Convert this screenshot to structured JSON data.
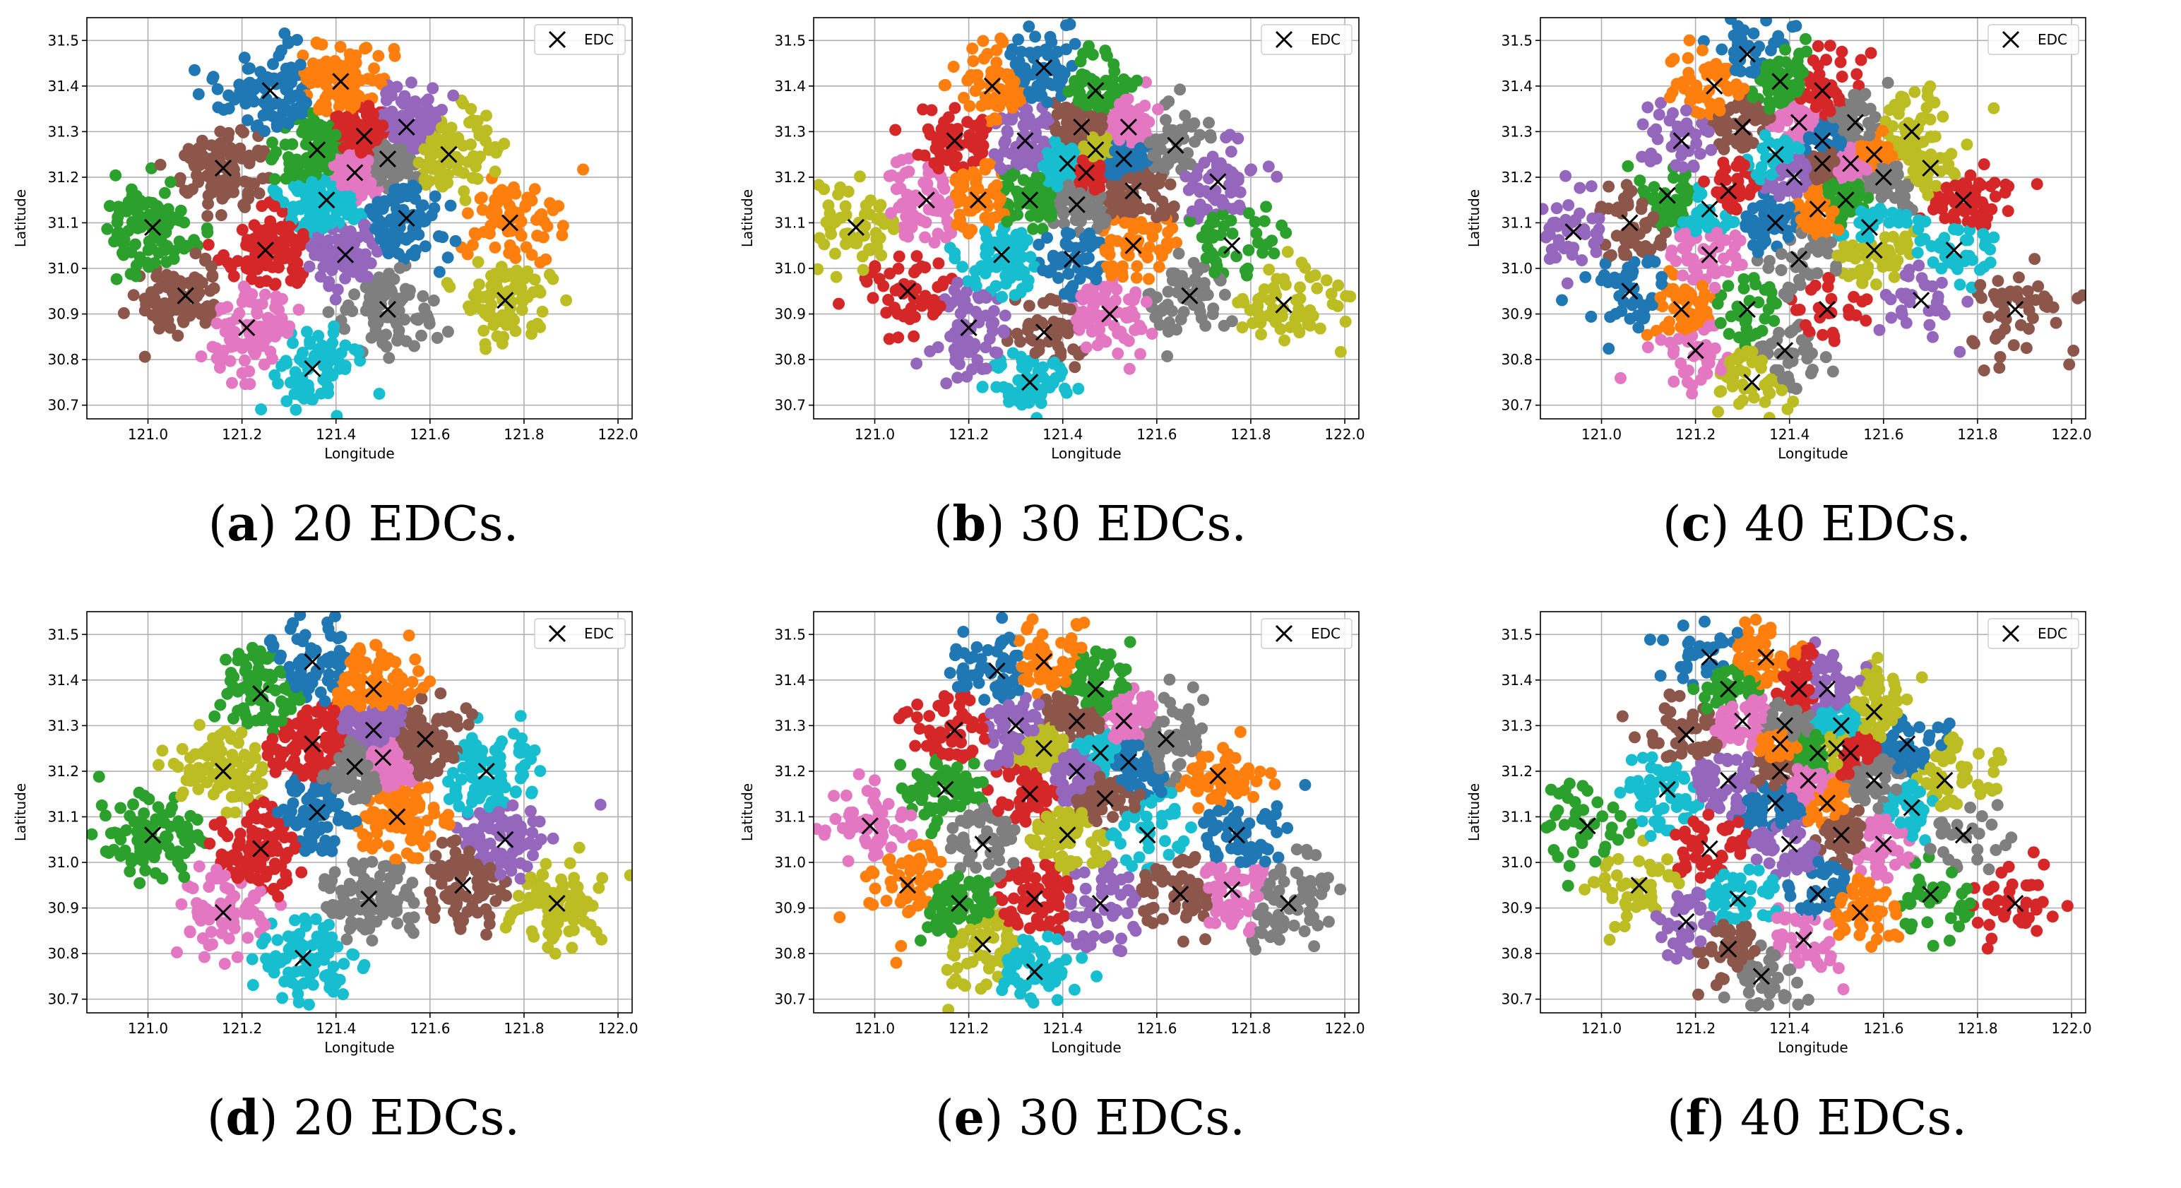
{
  "figure": {
    "colors": [
      "#1f77b4",
      "#ff7f0e",
      "#2ca02c",
      "#d62728",
      "#9467bd",
      "#8c564b",
      "#e377c2",
      "#7f7f7f",
      "#bcbd22",
      "#17becf"
    ],
    "marker_color": "#000000"
  },
  "chart_data": [
    {
      "type": "scatter",
      "panel_letter": "a",
      "caption_text": "20 EDCs.",
      "xlabel": "Longitude",
      "ylabel": "Latitude",
      "xlim": [
        120.87,
        122.03
      ],
      "ylim": [
        30.67,
        31.55
      ],
      "xticks": [
        "121.0",
        "121.2",
        "121.4",
        "121.6",
        "121.8",
        "122.0"
      ],
      "yticks": [
        "30.7",
        "30.8",
        "30.9",
        "31.0",
        "31.1",
        "31.2",
        "31.3",
        "31.4",
        "31.5"
      ],
      "grid": true,
      "legend_label": "EDC",
      "legend_position": "top-right",
      "edcs": [
        [
          121.26,
          31.39
        ],
        [
          121.41,
          31.41
        ],
        [
          121.36,
          31.26
        ],
        [
          121.46,
          31.29
        ],
        [
          121.55,
          31.31
        ],
        [
          121.16,
          31.22
        ],
        [
          121.44,
          31.21
        ],
        [
          121.51,
          31.24
        ],
        [
          121.64,
          31.25
        ],
        [
          121.38,
          31.15
        ],
        [
          121.55,
          31.11
        ],
        [
          121.77,
          31.1
        ],
        [
          121.01,
          31.09
        ],
        [
          121.25,
          31.04
        ],
        [
          121.42,
          31.03
        ],
        [
          121.08,
          30.94
        ],
        [
          121.21,
          30.87
        ],
        [
          121.51,
          30.91
        ],
        [
          121.76,
          30.93
        ],
        [
          121.35,
          30.78
        ]
      ]
    },
    {
      "type": "scatter",
      "panel_letter": "b",
      "caption_text": "30 EDCs.",
      "xlabel": "Longitude",
      "ylabel": "Latitude",
      "xlim": [
        120.87,
        122.03
      ],
      "ylim": [
        30.67,
        31.55
      ],
      "xticks": [
        "121.0",
        "121.2",
        "121.4",
        "121.6",
        "121.8",
        "122.0"
      ],
      "yticks": [
        "30.7",
        "30.8",
        "30.9",
        "31.0",
        "31.1",
        "31.2",
        "31.3",
        "31.4",
        "31.5"
      ],
      "grid": true,
      "legend_label": "EDC",
      "legend_position": "top-right",
      "edcs": [
        [
          121.36,
          31.44
        ],
        [
          121.25,
          31.4
        ],
        [
          121.47,
          31.39
        ],
        [
          121.17,
          31.28
        ],
        [
          121.32,
          31.28
        ],
        [
          121.44,
          31.31
        ],
        [
          121.54,
          31.31
        ],
        [
          121.64,
          31.27
        ],
        [
          121.47,
          31.26
        ],
        [
          121.41,
          31.23
        ],
        [
          121.53,
          31.24
        ],
        [
          121.22,
          31.15
        ],
        [
          121.33,
          31.15
        ],
        [
          121.45,
          31.21
        ],
        [
          121.73,
          31.19
        ],
        [
          121.55,
          31.17
        ],
        [
          121.11,
          31.15
        ],
        [
          121.43,
          31.14
        ],
        [
          120.96,
          31.09
        ],
        [
          121.27,
          31.03
        ],
        [
          121.42,
          31.02
        ],
        [
          121.55,
          31.05
        ],
        [
          121.76,
          31.05
        ],
        [
          121.07,
          30.95
        ],
        [
          121.2,
          30.87
        ],
        [
          121.36,
          30.86
        ],
        [
          121.5,
          30.9
        ],
        [
          121.67,
          30.94
        ],
        [
          121.87,
          30.92
        ],
        [
          121.33,
          30.75
        ]
      ]
    },
    {
      "type": "scatter",
      "panel_letter": "c",
      "caption_text": "40 EDCs.",
      "xlabel": "Longitude",
      "ylabel": "Latitude",
      "xlim": [
        120.87,
        122.03
      ],
      "ylim": [
        30.67,
        31.55
      ],
      "xticks": [
        "121.0",
        "121.2",
        "121.4",
        "121.6",
        "121.8",
        "122.0"
      ],
      "yticks": [
        "30.7",
        "30.8",
        "30.9",
        "31.0",
        "31.1",
        "31.2",
        "31.3",
        "31.4",
        "31.5"
      ],
      "grid": true,
      "legend_label": "EDC",
      "legend_position": "top-right",
      "edcs": [
        [
          121.31,
          31.47
        ],
        [
          121.24,
          31.4
        ],
        [
          121.38,
          31.41
        ],
        [
          121.47,
          31.39
        ],
        [
          121.17,
          31.28
        ],
        [
          121.3,
          31.31
        ],
        [
          121.42,
          31.32
        ],
        [
          121.54,
          31.32
        ],
        [
          121.66,
          31.3
        ],
        [
          121.37,
          31.25
        ],
        [
          121.47,
          31.28
        ],
        [
          121.58,
          31.25
        ],
        [
          121.14,
          31.16
        ],
        [
          121.27,
          31.17
        ],
        [
          121.41,
          31.2
        ],
        [
          121.47,
          31.23
        ],
        [
          121.53,
          31.23
        ],
        [
          121.6,
          31.2
        ],
        [
          121.7,
          31.22
        ],
        [
          121.23,
          31.13
        ],
        [
          121.37,
          31.1
        ],
        [
          121.46,
          31.13
        ],
        [
          121.52,
          31.15
        ],
        [
          121.77,
          31.15
        ],
        [
          120.94,
          31.08
        ],
        [
          121.06,
          31.1
        ],
        [
          121.23,
          31.03
        ],
        [
          121.42,
          31.02
        ],
        [
          121.58,
          31.04
        ],
        [
          121.75,
          31.04
        ],
        [
          121.06,
          30.95
        ],
        [
          121.17,
          30.91
        ],
        [
          121.31,
          30.91
        ],
        [
          121.48,
          30.91
        ],
        [
          121.68,
          30.93
        ],
        [
          121.88,
          30.91
        ],
        [
          121.2,
          30.82
        ],
        [
          121.39,
          30.82
        ],
        [
          121.32,
          30.75
        ],
        [
          121.57,
          31.09
        ]
      ]
    },
    {
      "type": "scatter",
      "panel_letter": "d",
      "caption_text": "20 EDCs.",
      "xlabel": "Longitude",
      "ylabel": "Latitude",
      "xlim": [
        120.87,
        122.03
      ],
      "ylim": [
        30.67,
        31.55
      ],
      "xticks": [
        "121.0",
        "121.2",
        "121.4",
        "121.6",
        "121.8",
        "122.0"
      ],
      "yticks": [
        "30.7",
        "30.8",
        "30.9",
        "31.0",
        "31.1",
        "31.2",
        "31.3",
        "31.4",
        "31.5"
      ],
      "grid": true,
      "legend_label": "EDC",
      "legend_position": "top-right",
      "edcs": [
        [
          121.35,
          31.44
        ],
        [
          121.48,
          31.38
        ],
        [
          121.24,
          31.37
        ],
        [
          121.35,
          31.26
        ],
        [
          121.48,
          31.29
        ],
        [
          121.59,
          31.27
        ],
        [
          121.5,
          31.23
        ],
        [
          121.44,
          31.21
        ],
        [
          121.16,
          31.2
        ],
        [
          121.72,
          31.2
        ],
        [
          121.36,
          31.11
        ],
        [
          121.53,
          31.1
        ],
        [
          121.01,
          31.06
        ],
        [
          121.24,
          31.03
        ],
        [
          121.76,
          31.05
        ],
        [
          121.67,
          30.95
        ],
        [
          121.16,
          30.89
        ],
        [
          121.47,
          30.92
        ],
        [
          121.87,
          30.91
        ],
        [
          121.33,
          30.79
        ]
      ]
    },
    {
      "type": "scatter",
      "panel_letter": "e",
      "caption_text": "30 EDCs.",
      "xlabel": "Longitude",
      "ylabel": "Latitude",
      "xlim": [
        120.87,
        122.03
      ],
      "ylim": [
        30.67,
        31.55
      ],
      "xticks": [
        "121.0",
        "121.2",
        "121.4",
        "121.6",
        "121.8",
        "122.0"
      ],
      "yticks": [
        "30.7",
        "30.8",
        "30.9",
        "31.0",
        "31.1",
        "31.2",
        "31.3",
        "31.4",
        "31.5"
      ],
      "grid": true,
      "legend_label": "EDC",
      "legend_position": "top-right",
      "edcs": [
        [
          121.26,
          31.42
        ],
        [
          121.36,
          31.44
        ],
        [
          121.47,
          31.38
        ],
        [
          121.17,
          31.29
        ],
        [
          121.3,
          31.3
        ],
        [
          121.43,
          31.31
        ],
        [
          121.53,
          31.31
        ],
        [
          121.62,
          31.27
        ],
        [
          121.36,
          31.25
        ],
        [
          121.48,
          31.24
        ],
        [
          121.54,
          31.22
        ],
        [
          121.73,
          31.19
        ],
        [
          121.15,
          31.16
        ],
        [
          121.33,
          31.15
        ],
        [
          121.43,
          31.2
        ],
        [
          121.49,
          31.14
        ],
        [
          120.99,
          31.08
        ],
        [
          121.23,
          31.04
        ],
        [
          121.41,
          31.06
        ],
        [
          121.58,
          31.06
        ],
        [
          121.77,
          31.06
        ],
        [
          121.07,
          30.95
        ],
        [
          121.18,
          30.91
        ],
        [
          121.34,
          30.92
        ],
        [
          121.48,
          30.91
        ],
        [
          121.65,
          30.93
        ],
        [
          121.76,
          30.94
        ],
        [
          121.88,
          30.91
        ],
        [
          121.23,
          30.82
        ],
        [
          121.34,
          30.76
        ]
      ]
    },
    {
      "type": "scatter",
      "panel_letter": "f",
      "caption_text": "40 EDCs.",
      "xlabel": "Longitude",
      "ylabel": "Latitude",
      "xlim": [
        120.87,
        122.03
      ],
      "ylim": [
        30.67,
        31.55
      ],
      "xticks": [
        "121.0",
        "121.2",
        "121.4",
        "121.6",
        "121.8",
        "122.0"
      ],
      "yticks": [
        "30.7",
        "30.8",
        "30.9",
        "31.0",
        "31.1",
        "31.2",
        "31.3",
        "31.4",
        "31.5"
      ],
      "grid": true,
      "legend_label": "EDC",
      "legend_position": "top-right",
      "edcs": [
        [
          121.23,
          31.45
        ],
        [
          121.35,
          31.45
        ],
        [
          121.27,
          31.38
        ],
        [
          121.42,
          31.38
        ],
        [
          121.48,
          31.38
        ],
        [
          121.18,
          31.28
        ],
        [
          121.3,
          31.31
        ],
        [
          121.39,
          31.3
        ],
        [
          121.58,
          31.33
        ],
        [
          121.51,
          31.3
        ],
        [
          121.65,
          31.26
        ],
        [
          121.38,
          31.26
        ],
        [
          121.46,
          31.24
        ],
        [
          121.53,
          31.24
        ],
        [
          121.27,
          31.18
        ],
        [
          121.38,
          31.2
        ],
        [
          121.44,
          31.18
        ],
        [
          121.58,
          31.18
        ],
        [
          121.73,
          31.18
        ],
        [
          121.14,
          31.16
        ],
        [
          121.37,
          31.13
        ],
        [
          121.48,
          31.13
        ],
        [
          120.97,
          31.08
        ],
        [
          121.23,
          31.03
        ],
        [
          121.4,
          31.04
        ],
        [
          121.51,
          31.06
        ],
        [
          121.6,
          31.04
        ],
        [
          121.77,
          31.06
        ],
        [
          121.08,
          30.95
        ],
        [
          121.29,
          30.92
        ],
        [
          121.46,
          30.93
        ],
        [
          121.55,
          30.89
        ],
        [
          121.7,
          30.93
        ],
        [
          121.88,
          30.91
        ],
        [
          121.18,
          30.87
        ],
        [
          121.27,
          30.81
        ],
        [
          121.43,
          30.83
        ],
        [
          121.34,
          30.75
        ],
        [
          121.5,
          31.25
        ],
        [
          121.66,
          31.12
        ]
      ]
    }
  ]
}
